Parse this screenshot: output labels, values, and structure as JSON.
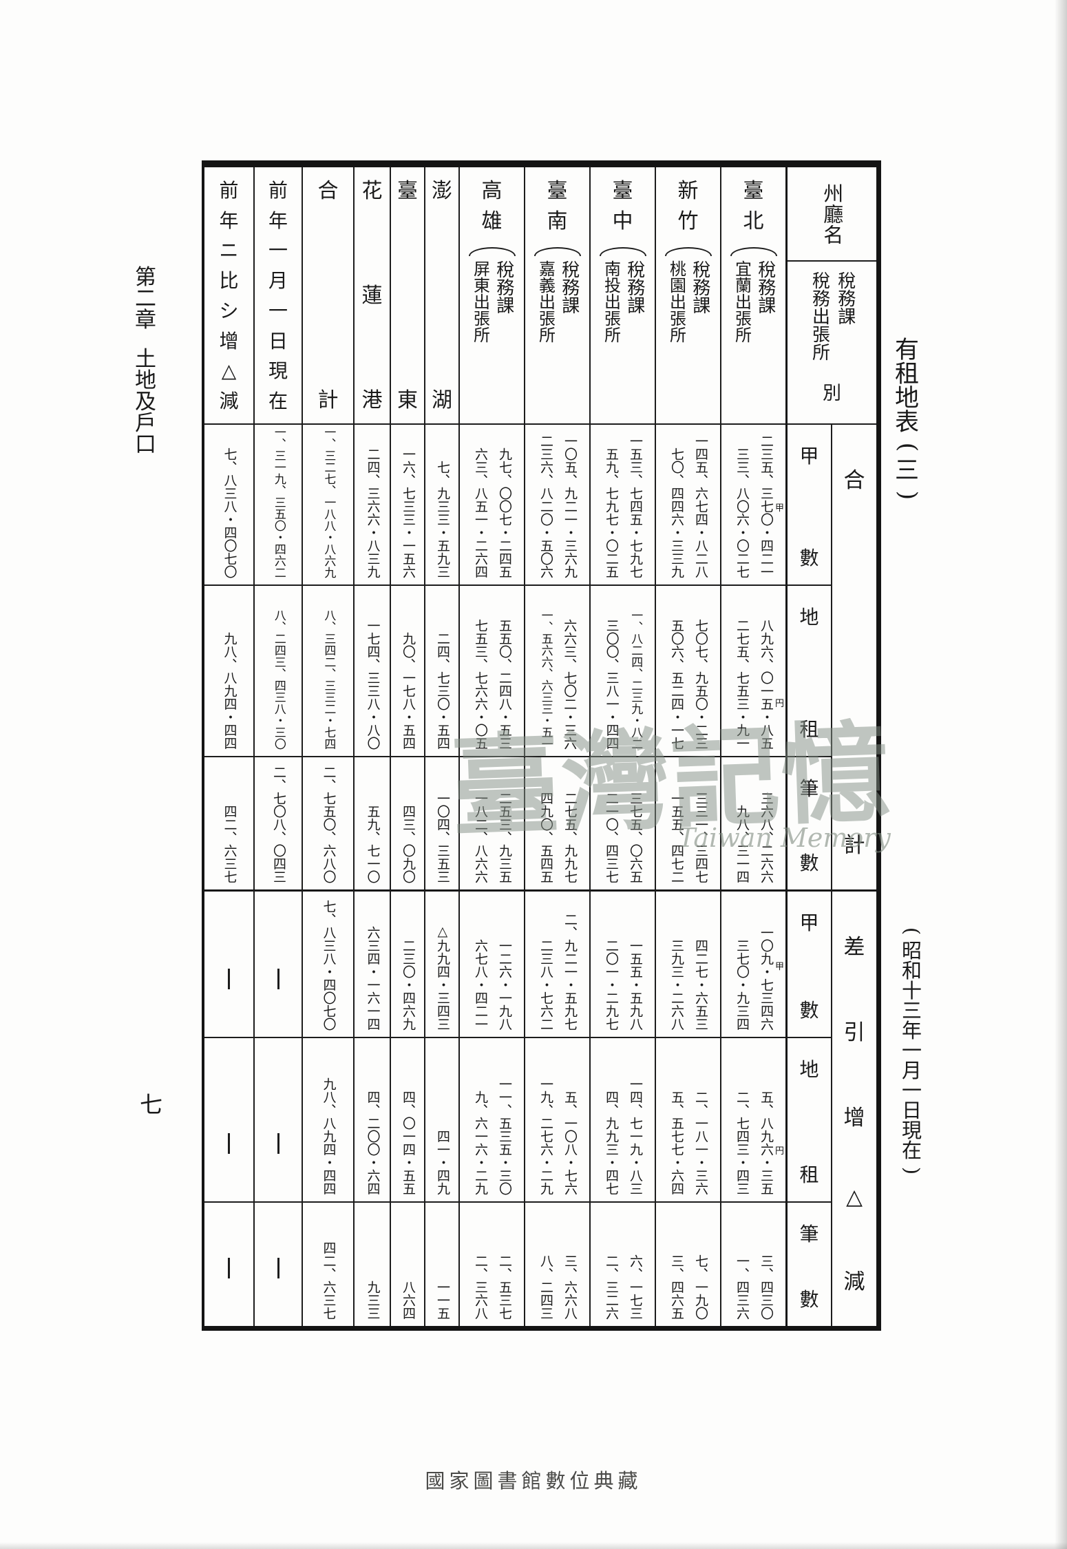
{
  "page": {
    "chapter_title": "第二章 土地及戶口",
    "page_number": "七",
    "sheet_title": "有租地表(三)",
    "sheet_subtitle": "(昭和十三年一月一日現在)",
    "bottom_caption": "國家圖書館數位典藏",
    "watermark_cjk": "臺灣記憶",
    "watermark_latin": "Taiwan Memory"
  },
  "table": {
    "corner": {
      "top_label": "州廳名",
      "bottom_right": "稅務課",
      "bottom_left": "稅務出張所",
      "bottom_suffix": "別"
    },
    "columns": [
      {
        "id": "zogen",
        "label": "前年ニ比シ增△減",
        "type": "single"
      },
      {
        "id": "zennen",
        "label": "前年一月一日現在",
        "type": "single"
      },
      {
        "id": "gokei",
        "label": "合計",
        "type": "single"
      },
      {
        "id": "karenko",
        "label": "花蓮港",
        "type": "single"
      },
      {
        "id": "taito",
        "label": "臺東",
        "type": "single"
      },
      {
        "id": "hoko",
        "label": "澎湖",
        "type": "single"
      },
      {
        "id": "takao",
        "label": "高雄",
        "type": "pair",
        "sub_left": "屏東出張所",
        "sub_right": "稅務課"
      },
      {
        "id": "tainan",
        "label": "臺南",
        "type": "pair",
        "sub_left": "嘉義出張所",
        "sub_right": "稅務課"
      },
      {
        "id": "taichu",
        "label": "臺中",
        "type": "pair",
        "sub_left": "南投出張所",
        "sub_right": "稅務課"
      },
      {
        "id": "shinchiku",
        "label": "新竹",
        "type": "pair",
        "sub_left": "桃園出張所",
        "sub_right": "稅務課"
      },
      {
        "id": "taihoku",
        "label": "臺北",
        "type": "pair",
        "sub_left": "宜蘭出張所",
        "sub_right": "稅務課"
      }
    ],
    "row_groups": [
      {
        "label": "合計"
      },
      {
        "label": "差引增△減"
      }
    ],
    "rows": [
      {
        "group": 0,
        "label": "甲數",
        "unit": "甲",
        "values": {
          "zogen": "七、八三八・四〇七〇",
          "zennen": "一、三一九、三五〇・四六二",
          "gokei": "一、三二七、一八八・八六九",
          "karenko": "二四、三六六・八三九",
          "taito": "一六、七三三・一五六",
          "hoko": "七、九三三・五九三",
          "takao": [
            "六三、八五一・二六四",
            "九七、〇〇七・二四五"
          ],
          "tainan": [
            "二三六、八二〇・五〇六",
            "一〇五、九二一・三六九"
          ],
          "taichu": [
            "五九、七九七・〇二五",
            "一五三、七四五・七九七"
          ],
          "shinchiku": [
            "七〇、四四六・三三九",
            "一四五、六七四・八二八"
          ],
          "taihoku": [
            "三三、八〇六・〇二七",
            "二三五、三七〇・四二一"
          ]
        }
      },
      {
        "group": 0,
        "label": "地租",
        "unit": "円",
        "values": {
          "zogen": "九八、八九四・四四",
          "zennen": "八、二四三、四三八・三〇",
          "gokei": "八、三四二、三三二・七四",
          "karenko": "一七四、三三八・八〇",
          "taito": "九〇、一七八・五四",
          "hoko": "二四、七三〇・五四",
          "takao": [
            "七五三、七六六・〇五",
            "五五〇、二四八・五三"
          ],
          "tainan": [
            "一、五六六、六三三・五一",
            "六六三、七〇二・三六"
          ],
          "taichu": [
            "三〇〇、三八一・四四",
            "一、八二四、二三九・八二"
          ],
          "shinchiku": [
            "五〇六、五二四・一七",
            "七〇七、九五〇・二三"
          ],
          "taihoku": [
            "二七五、七五三・九一",
            "八九六、〇一五・八五"
          ]
        }
      },
      {
        "group": 0,
        "label": "筆數",
        "unit": "",
        "values": {
          "zogen": "四二、六三七",
          "zennen": "二、七〇八、〇四三",
          "gokei": "二、七五〇、六八〇",
          "karenko": "五九、七一〇",
          "taito": "四三、〇九〇",
          "hoko": "一〇四、三五三",
          "takao": [
            "一八二、八六六",
            "二五三、九三五"
          ],
          "tainan": [
            "四九〇、五四五",
            "二七五、九九七"
          ],
          "taichu": [
            "二一〇、四三七",
            "三七五、〇六五"
          ],
          "shinchiku": [
            "一五五、四七二",
            "三三一、三四七"
          ],
          "taihoku": [
            "九八、三一四",
            "三六八、二六六"
          ]
        }
      },
      {
        "group": 1,
        "label": "甲數",
        "unit": "甲",
        "values": {
          "zogen": "—",
          "zennen": "—",
          "gokei": "七、八三八・四〇七〇",
          "karenko": "六三四・一六一四",
          "taito": "二三〇・四六九",
          "hoko": "△九九四・三四三",
          "takao": [
            "六七八・四二一",
            "一二六・一九八"
          ],
          "tainan": [
            "二三八・七六二",
            "二、九二一・五九七"
          ],
          "taichu": [
            "二〇一・二九七",
            "一五五・五九八"
          ],
          "shinchiku": [
            "三九三・二六八",
            "四二七・六五三"
          ],
          "taihoku": [
            "三七〇・九三四",
            "一〇九・七三四六"
          ]
        }
      },
      {
        "group": 1,
        "label": "地租",
        "unit": "円",
        "values": {
          "zogen": "—",
          "zennen": "—",
          "gokei": "九八、八九四・四四",
          "karenko": "四、二〇〇・六四",
          "taito": "四、〇一四・五五",
          "hoko": "四一・四九",
          "takao": [
            "九、六一六・二九",
            "一一、五三五・三〇"
          ],
          "tainan": [
            "一九、二七六・二九",
            "五、一〇八・七六"
          ],
          "taichu": [
            "四、九九三・四七",
            "一四、七一九・八三"
          ],
          "shinchiku": [
            "五、五七七・六四",
            "二、一八一・三六"
          ],
          "taihoku": [
            "二、七四三・四三",
            "五、八九六・三五"
          ]
        }
      },
      {
        "group": 1,
        "label": "筆數",
        "unit": "",
        "values": {
          "zogen": "—",
          "zennen": "—",
          "gokei": "四二、六三七",
          "karenko": "九三三",
          "taito": "八六四",
          "hoko": "一一五",
          "takao": [
            "二、三六八",
            "二、五三七"
          ],
          "tainan": [
            "八、二四三",
            "三、六六八"
          ],
          "taichu": [
            "二、三二六",
            "六、一七三"
          ],
          "shinchiku": [
            "三、四六五",
            "七、一九〇"
          ],
          "taihoku": [
            "一、四三六",
            "三、四三〇"
          ]
        }
      }
    ]
  }
}
